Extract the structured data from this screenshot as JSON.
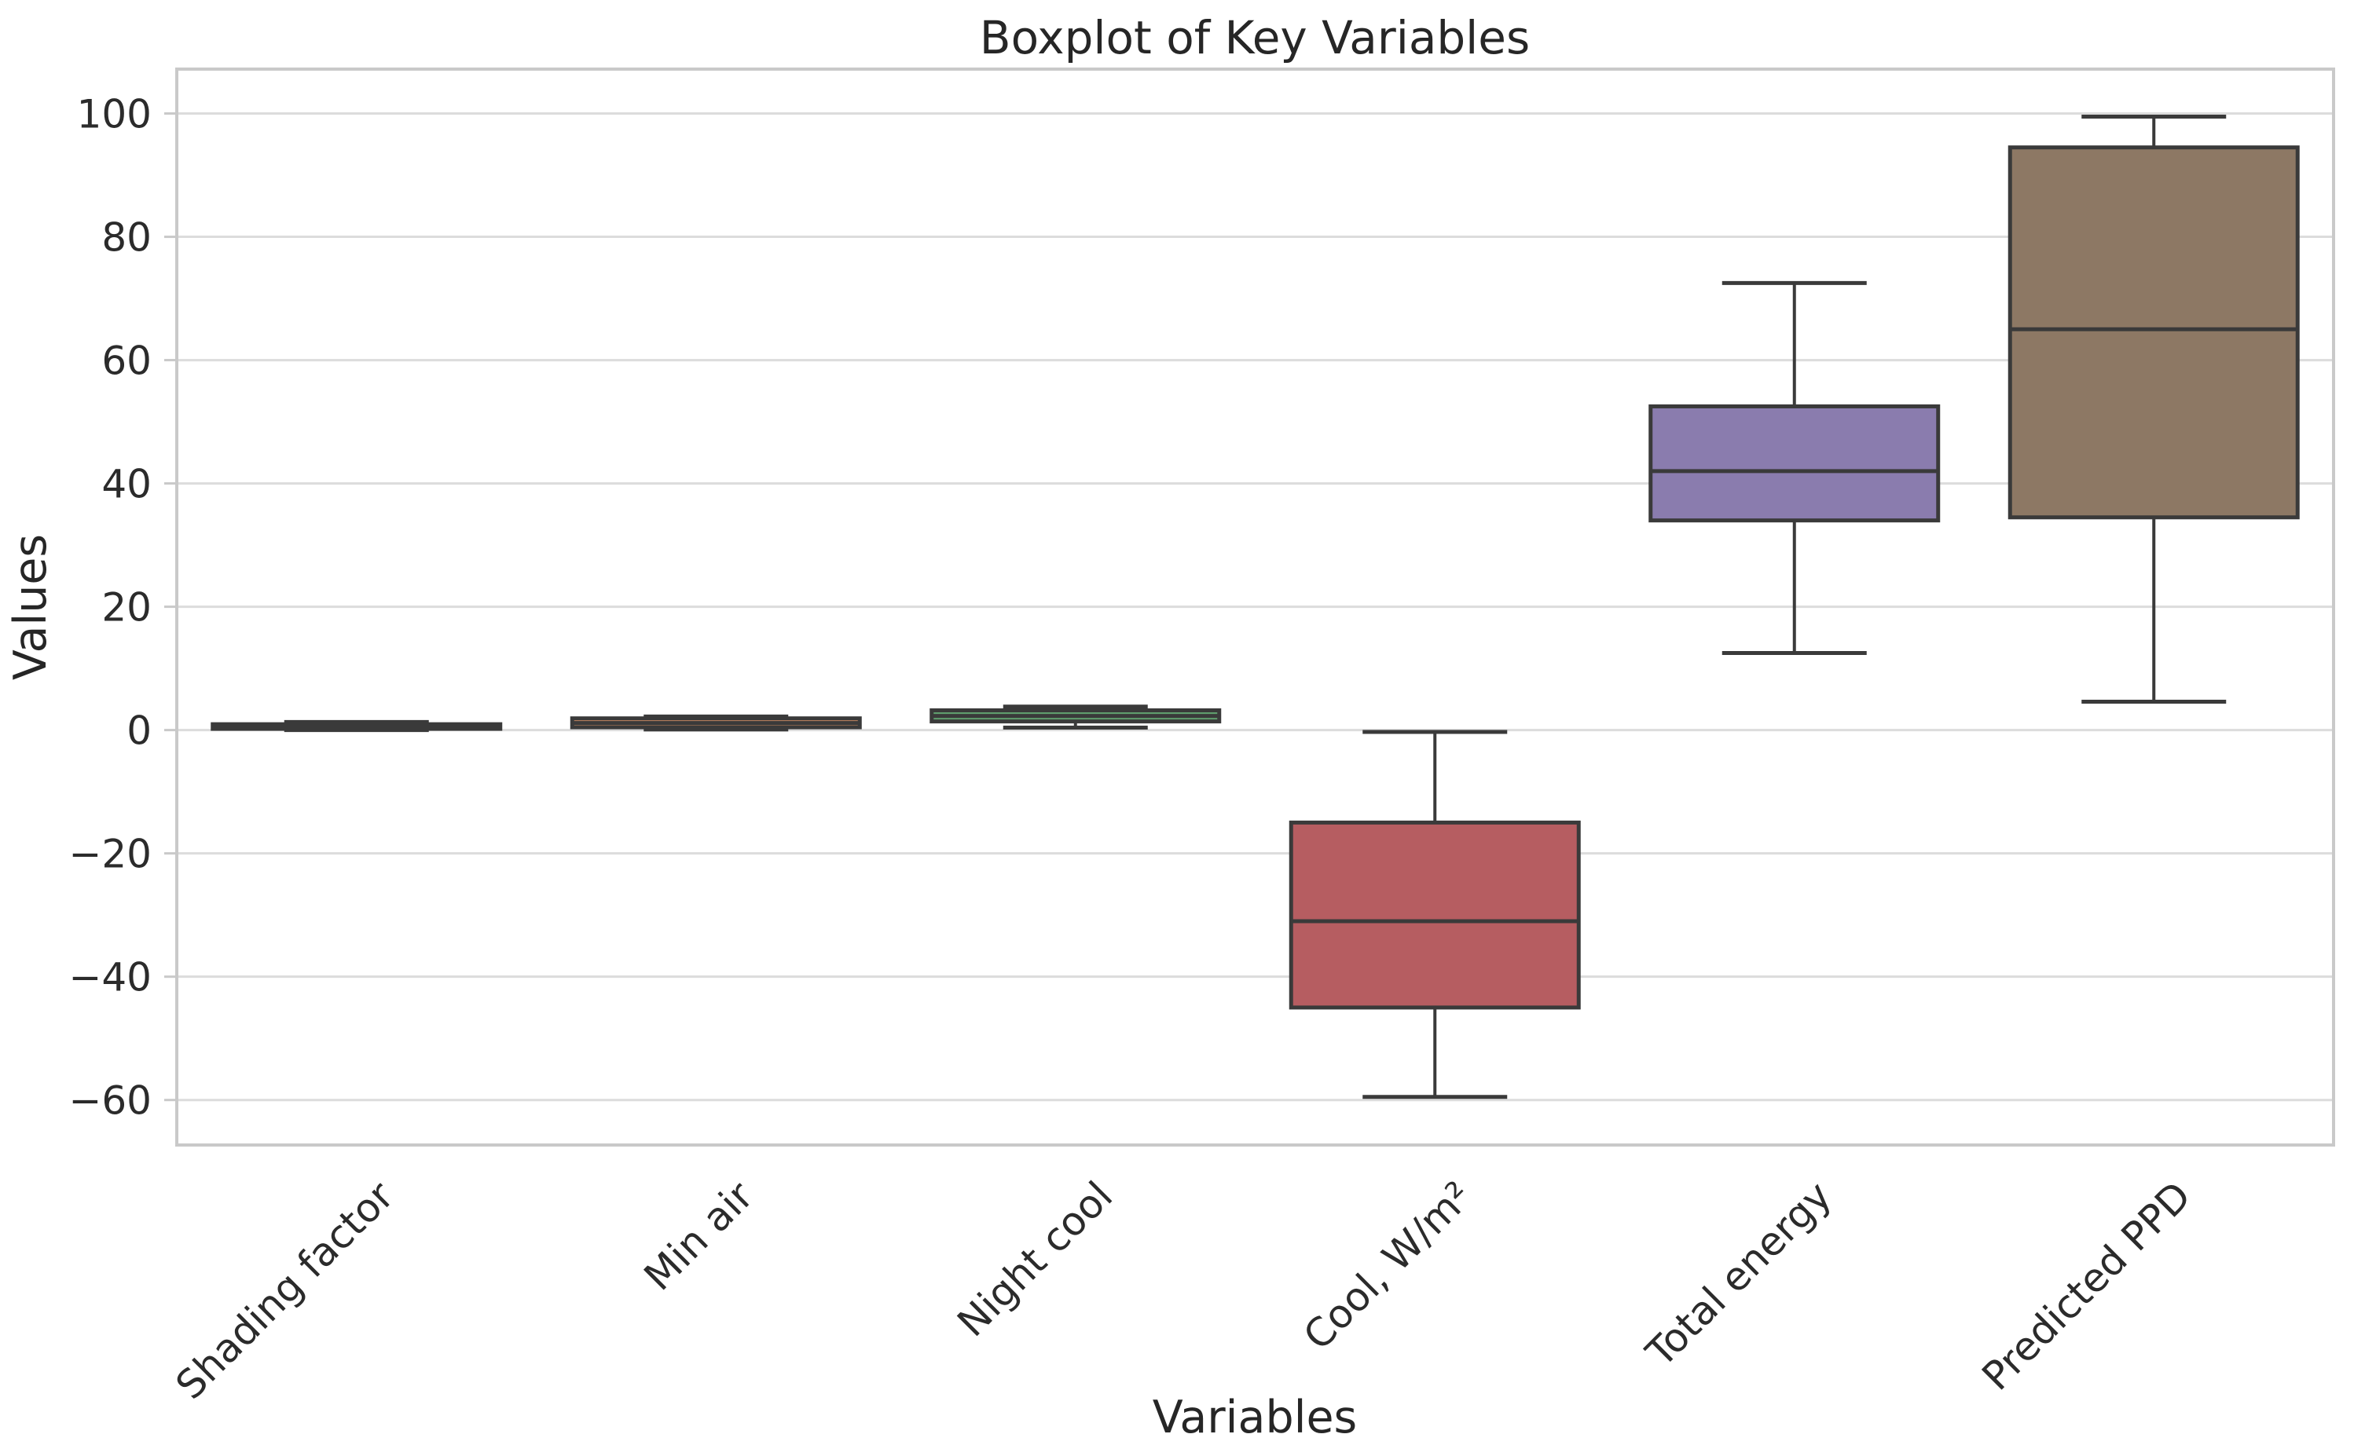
{
  "chart_data": {
    "type": "boxplot",
    "title": "Boxplot of Key Variables",
    "xlabel": "Variables",
    "ylabel": "Values",
    "ylim": [
      -67.3,
      107.2
    ],
    "grid": "horizontal",
    "legend": "none",
    "yticks": [
      {
        "value": -60,
        "label": "−60"
      },
      {
        "value": -40,
        "label": "−40"
      },
      {
        "value": -20,
        "label": "−20"
      },
      {
        "value": 0,
        "label": "0"
      },
      {
        "value": 20,
        "label": "20"
      },
      {
        "value": 40,
        "label": "40"
      },
      {
        "value": 60,
        "label": "60"
      },
      {
        "value": 80,
        "label": "80"
      },
      {
        "value": 100,
        "label": "100"
      }
    ],
    "categories": [
      "Shading factor",
      "Min air",
      "Night cool",
      "Cool, W/m²",
      "Total energy",
      "Predicted PPD"
    ],
    "series": [
      {
        "label": "Shading factor",
        "color": "#5875a8",
        "whislo": 0.0,
        "q1": 0.2,
        "med": 0.55,
        "q3": 0.95,
        "whishi": 1.3
      },
      {
        "label": "Min air",
        "color": "#d08c62",
        "whislo": 0.1,
        "q1": 0.45,
        "med": 1.15,
        "q3": 1.9,
        "whishi": 2.2
      },
      {
        "label": "Night cool",
        "color": "#609e6e",
        "whislo": 0.4,
        "q1": 1.4,
        "med": 2.3,
        "q3": 3.2,
        "whishi": 3.8
      },
      {
        "label": "Cool, W/m²",
        "color": "#b65d61",
        "whislo": -59.5,
        "q1": -45,
        "med": -31,
        "q3": -15,
        "whishi": -0.3
      },
      {
        "label": "Total energy",
        "color": "#8a7cae",
        "whislo": 12.5,
        "q1": 34,
        "med": 42,
        "q3": 52.5,
        "whishi": 72.5
      },
      {
        "label": "Predicted PPD",
        "color": "#8d7864",
        "whislo": 4.6,
        "q1": 34.5,
        "med": 65,
        "q3": 94.5,
        "whishi": 99.5
      }
    ],
    "style": {
      "box_edge_color": "#3a3a3a",
      "grid_color": "#dcdcdc",
      "spine_color": "#c9c9c9",
      "text_color": "#262626",
      "background": "#ffffff"
    }
  }
}
